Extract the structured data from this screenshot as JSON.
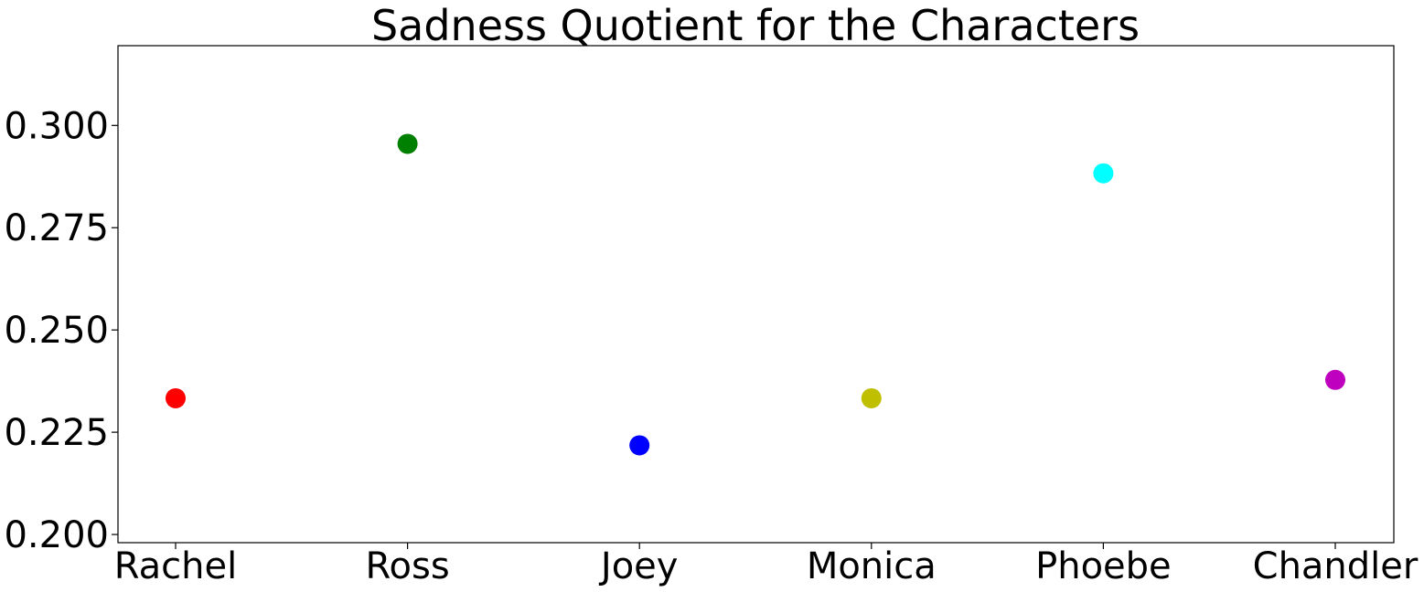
{
  "chart_data": {
    "type": "scatter",
    "title": "Sadness Quotient for the Characters",
    "xlabel": "",
    "ylabel": "",
    "categories": [
      "Rachel",
      "Ross",
      "Joey",
      "Monica",
      "Phoebe",
      "Chandler"
    ],
    "values": [
      0.2333,
      0.2955,
      0.2218,
      0.2333,
      0.2883,
      0.2378
    ],
    "colors": [
      "#ff0000",
      "#008000",
      "#0000ff",
      "#bfbf00",
      "#00ffff",
      "#bf00bf"
    ],
    "ylim": [
      0.198,
      0.3195
    ],
    "yticks": [
      0.2,
      0.225,
      0.25,
      0.275,
      0.3
    ],
    "ytick_labels": [
      "0.200",
      "0.225",
      "0.250",
      "0.275",
      "0.300"
    ],
    "grid": false,
    "legend": "none"
  }
}
